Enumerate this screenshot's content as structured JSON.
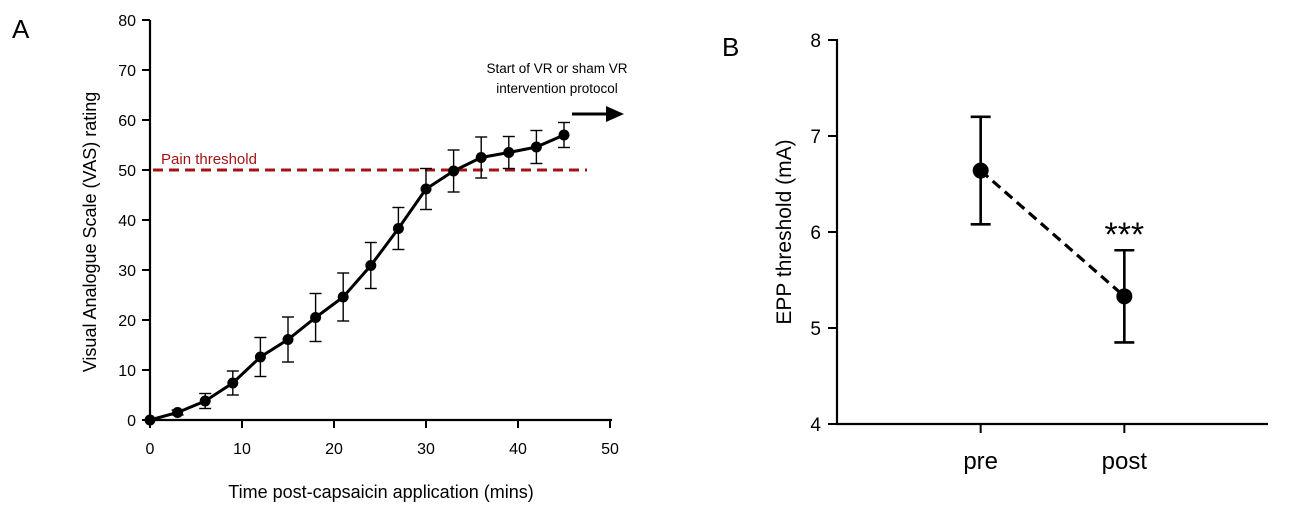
{
  "chart_data": [
    {
      "panel_label": "A",
      "type": "line",
      "xlabel": "Time post-capsaicin application (mins)",
      "ylabel": "Visual Analogue Scale (VAS) rating",
      "xlim": [
        0,
        50
      ],
      "ylim": [
        0,
        80
      ],
      "xticks": [
        0,
        10,
        20,
        30,
        40,
        50
      ],
      "yticks": [
        0,
        10,
        20,
        30,
        40,
        50,
        60,
        70,
        80
      ],
      "grid": false,
      "series": [
        {
          "x": [
            0,
            3,
            6,
            9,
            12,
            15,
            18,
            21,
            24,
            27,
            30,
            33,
            36,
            39,
            42,
            45
          ],
          "y": [
            0,
            1.5,
            3.8,
            7.4,
            12.6,
            16.1,
            20.5,
            24.6,
            30.9,
            38.3,
            46.2,
            49.8,
            52.5,
            53.5,
            54.6,
            57.0
          ],
          "error": [
            0,
            0.5,
            1.5,
            2.4,
            3.9,
            4.5,
            4.8,
            4.8,
            4.6,
            4.2,
            4.1,
            4.2,
            4.1,
            3.2,
            3.3,
            2.5
          ],
          "color": "#000000"
        }
      ],
      "reference_line": {
        "y": 50,
        "label": "Pain threshold",
        "color": "#a31515",
        "style": "dashed"
      },
      "annotation": {
        "lines": [
          "Start of VR or sham VR",
          "intervention protocol"
        ]
      }
    },
    {
      "panel_label": "B",
      "type": "scatter",
      "categories": [
        "pre",
        "post"
      ],
      "ylabel": "EPP threshold (mA)",
      "ylim": [
        4,
        8
      ],
      "yticks": [
        4,
        5,
        6,
        7,
        8
      ],
      "grid": false,
      "series": [
        {
          "values": [
            6.64,
            5.33
          ],
          "error": [
            0.56,
            0.48
          ],
          "connector": "dashed",
          "color": "#000000"
        }
      ],
      "significance": {
        "category": "post",
        "label": "***"
      }
    }
  ]
}
